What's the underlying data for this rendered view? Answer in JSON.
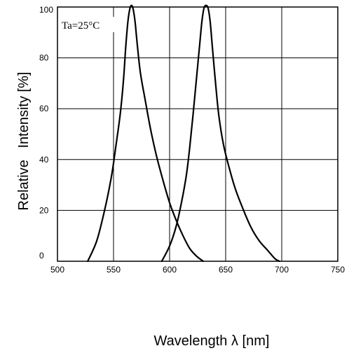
{
  "chart_data": {
    "type": "line",
    "xlabel": "Wavelength λ [nm]",
    "ylabel": "Relative   Intensity [%]",
    "annotation": "Ta=25°C",
    "xlim": [
      500,
      750
    ],
    "ylim": [
      0,
      100
    ],
    "xticks": [
      500,
      550,
      600,
      650,
      700,
      750
    ],
    "yticks": [
      0,
      20,
      40,
      60,
      80,
      100
    ],
    "grid": true,
    "series": [
      {
        "points": [
          [
            527,
            0
          ],
          [
            535,
            8
          ],
          [
            542,
            20
          ],
          [
            548,
            33
          ],
          [
            552,
            45
          ],
          [
            556,
            58
          ],
          [
            559,
            72
          ],
          [
            561,
            85
          ],
          [
            563,
            95
          ],
          [
            565,
            100
          ],
          [
            567,
            100
          ],
          [
            569,
            95
          ],
          [
            571,
            86
          ],
          [
            574,
            74
          ],
          [
            578,
            64
          ],
          [
            583,
            52
          ],
          [
            588,
            42
          ],
          [
            594,
            32
          ],
          [
            600,
            23
          ],
          [
            606,
            16
          ],
          [
            612,
            10
          ],
          [
            618,
            5
          ],
          [
            624,
            2
          ],
          [
            630,
            0
          ]
        ]
      },
      {
        "points": [
          [
            593,
            0
          ],
          [
            600,
            6
          ],
          [
            606,
            14
          ],
          [
            611,
            24
          ],
          [
            615,
            34
          ],
          [
            618,
            45
          ],
          [
            621,
            58
          ],
          [
            624,
            72
          ],
          [
            627,
            86
          ],
          [
            629,
            95
          ],
          [
            631,
            100
          ],
          [
            634,
            100
          ],
          [
            636,
            95
          ],
          [
            638,
            85
          ],
          [
            641,
            70
          ],
          [
            644,
            57
          ],
          [
            648,
            46
          ],
          [
            653,
            37
          ],
          [
            659,
            28
          ],
          [
            666,
            20
          ],
          [
            673,
            13
          ],
          [
            680,
            8
          ],
          [
            688,
            4
          ],
          [
            694,
            1
          ],
          [
            698,
            0
          ]
        ]
      }
    ]
  }
}
